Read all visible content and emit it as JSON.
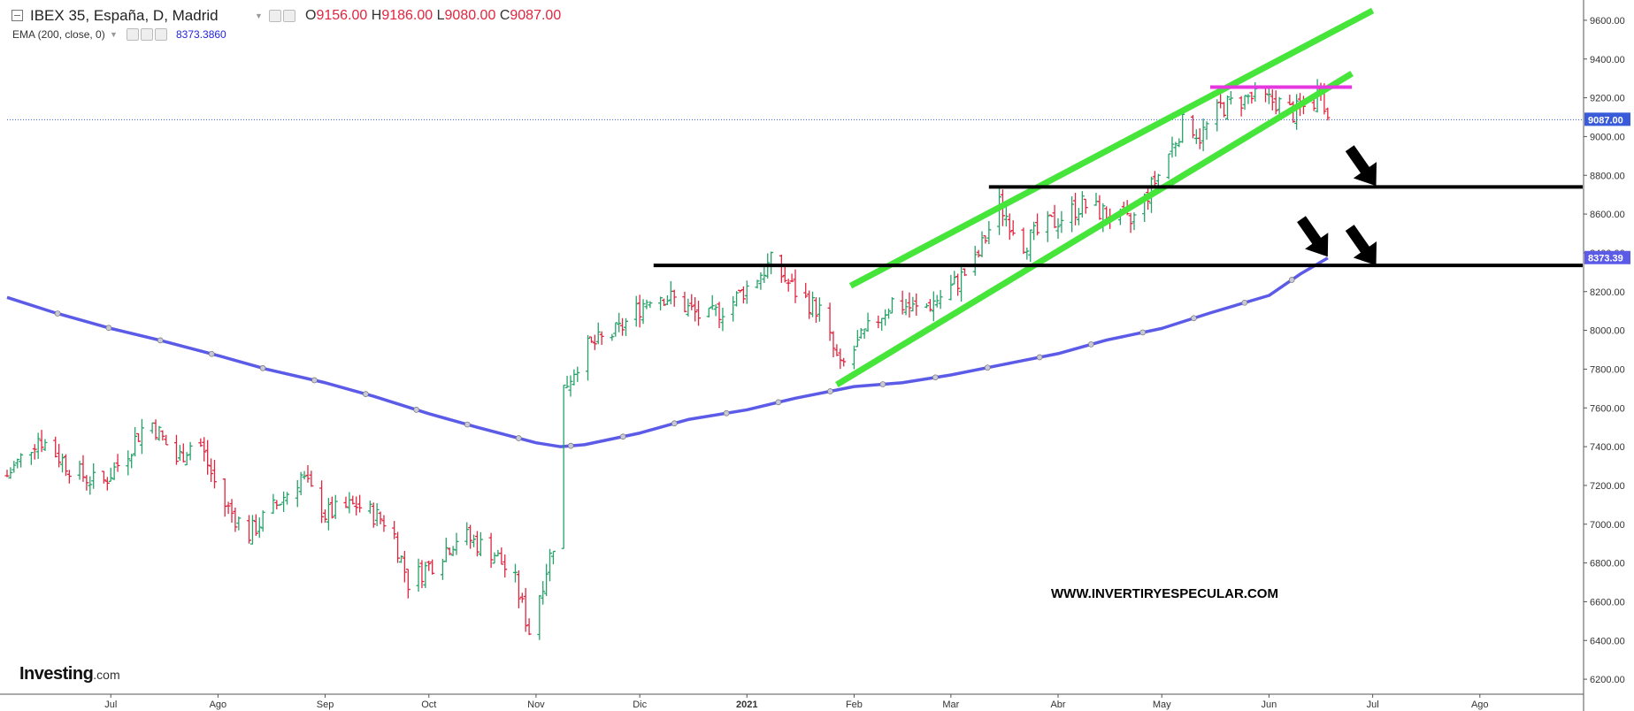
{
  "header": {
    "symbol": "IBEX 35, España, D, Madrid",
    "ohlc": [
      {
        "key": "O",
        "value": "9156.00"
      },
      {
        "key": "H",
        "value": "9186.00"
      },
      {
        "key": "L",
        "value": "9080.00"
      },
      {
        "key": "C",
        "value": "9087.00"
      }
    ],
    "indicator": "EMA (200, close, 0)",
    "indicator_value": "8373.3860"
  },
  "watermark": "WWW.INVERTIRYESPECULAR.COM",
  "logo": {
    "name": "Investing",
    "suffix": ".com"
  },
  "colors": {
    "up": "#26a269",
    "down": "#e0253f",
    "ema": "#5b5be8",
    "channel": "#45e53a",
    "resistance_top": "#e636e0",
    "support": "#000000",
    "price_line": "#3a5bd9"
  },
  "chart_data": {
    "type": "line",
    "title": "IBEX 35, España, D, Madrid",
    "xlabel": "",
    "ylabel": "",
    "ylim": [
      6100,
      9700
    ],
    "y_ticks": [
      6200,
      6400,
      6600,
      6800,
      7000,
      7200,
      7400,
      7600,
      7800,
      8000,
      8200,
      8400,
      8600,
      8800,
      9000,
      9200,
      9400,
      9600
    ],
    "y_tick_labels": [
      "6200.00",
      "6400.00",
      "6600.00",
      "6800.00",
      "7000.00",
      "7200.00",
      "7400.00",
      "7600.00",
      "7800.00",
      "8000.00",
      "8200.00",
      "8400.00",
      "8600.00",
      "8800.00",
      "9000.00",
      "9200.00",
      "9400.00",
      "9600.00"
    ],
    "x_range": [
      "2020-06-01",
      "2021-08-31"
    ],
    "x_ticks": [
      {
        "date": "2020-07-01",
        "label": "Jul"
      },
      {
        "date": "2020-08-01",
        "label": "Ago"
      },
      {
        "date": "2020-09-01",
        "label": "Sep"
      },
      {
        "date": "2020-10-01",
        "label": "Oct"
      },
      {
        "date": "2020-11-01",
        "label": "Nov"
      },
      {
        "date": "2020-12-01",
        "label": "Dic"
      },
      {
        "date": "2021-01-01",
        "label": "2021"
      },
      {
        "date": "2021-02-01",
        "label": "Feb"
      },
      {
        "date": "2021-03-01",
        "label": "Mar"
      },
      {
        "date": "2021-04-01",
        "label": "Abr"
      },
      {
        "date": "2021-05-01",
        "label": "May"
      },
      {
        "date": "2021-06-01",
        "label": "Jun"
      },
      {
        "date": "2021-07-01",
        "label": "Jul"
      },
      {
        "date": "2021-08-01",
        "label": "Ago"
      }
    ],
    "last_price": {
      "value": 9087.0,
      "label": "9087.00"
    },
    "ema_last": {
      "value": 8373.39,
      "label": "8373.39"
    },
    "price_series": {
      "name": "IBEX 35",
      "points": [
        [
          "2020-06-01",
          7250
        ],
        [
          "2020-06-10",
          7450
        ],
        [
          "2020-06-20",
          7280
        ],
        [
          "2020-06-28",
          7200
        ],
        [
          "2020-07-05",
          7350
        ],
        [
          "2020-07-12",
          7550
        ],
        [
          "2020-07-20",
          7330
        ],
        [
          "2020-07-26",
          7450
        ],
        [
          "2020-08-02",
          7120
        ],
        [
          "2020-08-10",
          6950
        ],
        [
          "2020-08-18",
          7100
        ],
        [
          "2020-08-25",
          7250
        ],
        [
          "2020-09-01",
          7050
        ],
        [
          "2020-09-10",
          7100
        ],
        [
          "2020-09-20",
          7000
        ],
        [
          "2020-09-25",
          6700
        ],
        [
          "2020-10-02",
          6800
        ],
        [
          "2020-10-10",
          6950
        ],
        [
          "2020-10-20",
          6850
        ],
        [
          "2020-10-26",
          6700
        ],
        [
          "2020-10-30",
          6450
        ],
        [
          "2020-11-06",
          6900
        ],
        [
          "2020-11-09",
          7700
        ],
        [
          "2020-11-15",
          7900
        ],
        [
          "2020-11-25",
          8000
        ],
        [
          "2020-12-05",
          8200
        ],
        [
          "2020-12-12",
          8150
        ],
        [
          "2020-12-20",
          8050
        ],
        [
          "2020-12-28",
          8150
        ],
        [
          "2021-01-08",
          8350
        ],
        [
          "2021-01-15",
          8200
        ],
        [
          "2021-01-22",
          8100
        ],
        [
          "2021-01-28",
          7800
        ],
        [
          "2021-02-05",
          8000
        ],
        [
          "2021-02-12",
          8150
        ],
        [
          "2021-02-20",
          8100
        ],
        [
          "2021-02-28",
          8200
        ],
        [
          "2021-03-08",
          8350
        ],
        [
          "2021-03-15",
          8650
        ],
        [
          "2021-03-22",
          8450
        ],
        [
          "2021-03-30",
          8550
        ],
        [
          "2021-04-08",
          8650
        ],
        [
          "2021-04-15",
          8600
        ],
        [
          "2021-04-22",
          8550
        ],
        [
          "2021-04-30",
          8800
        ],
        [
          "2021-05-08",
          9100
        ],
        [
          "2021-05-12",
          9000
        ],
        [
          "2021-05-18",
          9150
        ],
        [
          "2021-05-26",
          9200
        ],
        [
          "2021-06-03",
          9180
        ],
        [
          "2021-06-08",
          9120
        ],
        [
          "2021-06-14",
          9180
        ],
        [
          "2021-06-16",
          9280
        ],
        [
          "2021-06-18",
          9087
        ]
      ]
    },
    "ema_series": {
      "name": "EMA (200, close, 0)",
      "points": [
        [
          "2020-06-01",
          8170
        ],
        [
          "2020-06-15",
          8090
        ],
        [
          "2020-07-01",
          8010
        ],
        [
          "2020-07-15",
          7950
        ],
        [
          "2020-08-01",
          7870
        ],
        [
          "2020-08-15",
          7800
        ],
        [
          "2020-09-01",
          7730
        ],
        [
          "2020-09-15",
          7660
        ],
        [
          "2020-10-01",
          7570
        ],
        [
          "2020-10-15",
          7500
        ],
        [
          "2020-11-01",
          7420
        ],
        [
          "2020-11-08",
          7400
        ],
        [
          "2020-11-15",
          7410
        ],
        [
          "2020-12-01",
          7470
        ],
        [
          "2020-12-15",
          7540
        ],
        [
          "2021-01-01",
          7590
        ],
        [
          "2021-01-15",
          7650
        ],
        [
          "2021-02-01",
          7710
        ],
        [
          "2021-02-15",
          7730
        ],
        [
          "2021-03-01",
          7770
        ],
        [
          "2021-03-15",
          7820
        ],
        [
          "2021-04-01",
          7880
        ],
        [
          "2021-04-15",
          7950
        ],
        [
          "2021-05-01",
          8010
        ],
        [
          "2021-05-15",
          8090
        ],
        [
          "2021-06-01",
          8180
        ],
        [
          "2021-06-10",
          8290
        ],
        [
          "2021-06-18",
          8373.39
        ]
      ]
    },
    "drawings": {
      "channel_upper": [
        [
          "2021-01-31",
          8230
        ],
        [
          "2021-07-01",
          9650
        ]
      ],
      "channel_lower": [
        [
          "2021-01-27",
          7720
        ],
        [
          "2021-06-18",
          9250
        ]
      ],
      "resistance": {
        "from": "2021-05-15",
        "to": "2021-06-25",
        "value": 9255
      },
      "support_high": {
        "from": "2021-03-12",
        "value": 8740
      },
      "support_low": {
        "from": "2020-12-05",
        "value": 8335
      },
      "arrows": [
        {
          "date": "2021-07-02",
          "value": 8745
        },
        {
          "date": "2021-06-18",
          "value": 8380
        },
        {
          "date": "2021-07-02",
          "value": 8335
        }
      ]
    }
  }
}
